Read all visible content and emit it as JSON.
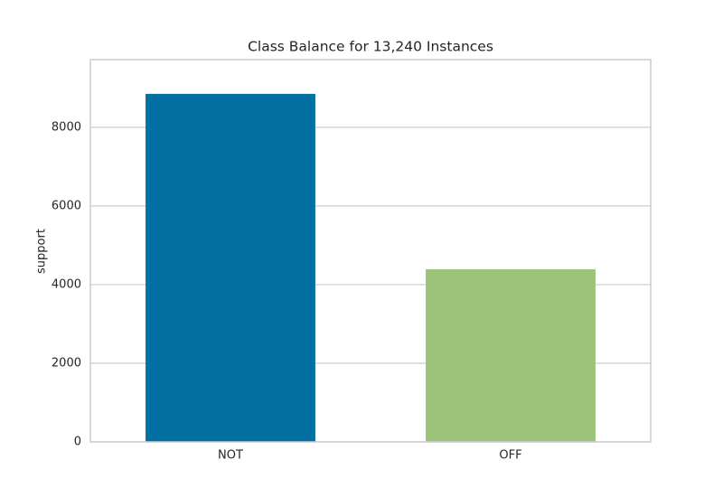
{
  "chart_data": {
    "type": "bar",
    "title": "Class Balance for 13,240 Instances",
    "ylabel": "support",
    "categories": [
      "NOT",
      "OFF"
    ],
    "values": [
      8850,
      4390
    ],
    "colors": [
      "#0270a3",
      "#9dc47b"
    ],
    "ylim": [
      0,
      9720
    ],
    "yticks": [
      0,
      2000,
      4000,
      6000,
      8000
    ],
    "grid": true
  }
}
